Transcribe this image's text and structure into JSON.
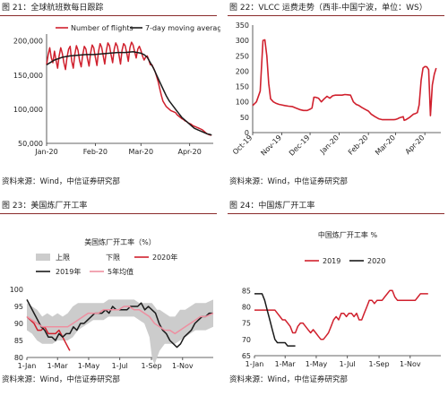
{
  "colors": {
    "red": "#d0202d",
    "black": "#1a1a1a",
    "pink": "#ee8fa0",
    "band": "#cccccc",
    "caption_rule": "#8a2b2b"
  },
  "panels": [
    {
      "caption": "图 21：全球航班数每日跟踪",
      "source": "资料来源：Wind，中信证券研究部"
    },
    {
      "caption": "图 22：VLCC 运费走势（西非-中国宁波，单位：WS）",
      "source": "资料来源：Wind，中信证券研究部"
    },
    {
      "caption": "图 23：美国炼厂开工率",
      "source": "资料来源：Wind，中信证券研究部"
    },
    {
      "caption": "图 24：中国炼厂开工率",
      "source": "资料来源：Wind，中信证券研究部"
    }
  ],
  "chart_data": [
    {
      "type": "line",
      "title": "",
      "x_ticks": [
        "Jan-20",
        "Feb-20",
        "Mar-20",
        "Apr-20"
      ],
      "x_range": [
        0,
        106
      ],
      "x_tick_positions": [
        0,
        31,
        60,
        91
      ],
      "ylim": [
        50000,
        210000
      ],
      "y_ticks": [
        "50,000",
        "100,000",
        "150,000",
        "200,000"
      ],
      "y_tick_values": [
        50000,
        100000,
        150000,
        200000
      ],
      "legend": "top",
      "series": [
        {
          "name": "Number of flights",
          "color": "#d0202d",
          "x": [
            0,
            1,
            2,
            3,
            4,
            5,
            6,
            7,
            8,
            9,
            10,
            11,
            12,
            13,
            14,
            15,
            16,
            17,
            18,
            19,
            20,
            21,
            22,
            23,
            24,
            25,
            26,
            27,
            28,
            29,
            30,
            31,
            32,
            33,
            34,
            35,
            36,
            37,
            38,
            39,
            40,
            41,
            42,
            43,
            44,
            45,
            46,
            47,
            48,
            49,
            50,
            51,
            52,
            53,
            54,
            55,
            56,
            57,
            58,
            59,
            60,
            61,
            62,
            63,
            64,
            65,
            66,
            67,
            68,
            69,
            70,
            71,
            72,
            73,
            74,
            75,
            76,
            77,
            78,
            79,
            80,
            81,
            82,
            83,
            84,
            85,
            86,
            87,
            88,
            89,
            90,
            91,
            92,
            93,
            94,
            95,
            96,
            97,
            98,
            99,
            100,
            101,
            102,
            103,
            104,
            105
          ],
          "y": [
            165000,
            180000,
            190000,
            175000,
            168000,
            185000,
            172000,
            160000,
            178000,
            190000,
            182000,
            168000,
            158000,
            176000,
            188000,
            192000,
            170000,
            160000,
            181000,
            193000,
            186000,
            171000,
            162000,
            180000,
            192000,
            188000,
            174000,
            163000,
            182000,
            194000,
            190000,
            176000,
            164000,
            184000,
            196000,
            191000,
            178000,
            166000,
            186000,
            197000,
            193000,
            180000,
            168000,
            188000,
            197000,
            192000,
            180000,
            166000,
            186000,
            196000,
            193000,
            182000,
            170000,
            190000,
            198000,
            194000,
            184000,
            175000,
            188000,
            192000,
            186000,
            178000,
            172000,
            176000,
            178000,
            172000,
            165000,
            165000,
            160000,
            155000,
            148000,
            140000,
            130000,
            120000,
            112000,
            108000,
            104000,
            102000,
            100000,
            98000,
            97000,
            96000,
            95000,
            92000,
            90000,
            88000,
            86000,
            85000,
            83000,
            82000,
            80000,
            79000,
            78000,
            76000,
            75000,
            74000,
            73000,
            72000,
            71000,
            70000,
            68000,
            66000,
            64000,
            63000,
            62000,
            62000
          ]
        },
        {
          "name": "7-day moving average",
          "color": "#1a1a1a",
          "x": [
            0,
            5,
            10,
            15,
            20,
            25,
            30,
            35,
            40,
            45,
            50,
            55,
            60,
            62,
            64,
            66,
            68,
            70,
            72,
            74,
            76,
            78,
            80,
            82,
            84,
            86,
            88,
            90,
            92,
            94,
            96,
            98,
            100,
            102,
            104,
            105
          ],
          "y": [
            165000,
            172000,
            176000,
            178000,
            179000,
            180000,
            180000,
            181000,
            182000,
            183000,
            183000,
            184000,
            182000,
            180000,
            176000,
            168000,
            160000,
            150000,
            140000,
            130000,
            120000,
            112000,
            106000,
            100000,
            94000,
            88000,
            84000,
            80000,
            76000,
            72000,
            70000,
            68000,
            66000,
            64000,
            63000,
            62000
          ]
        }
      ]
    },
    {
      "type": "line",
      "title": "",
      "x_ticks": [
        "Oct-19",
        "Nov-19",
        "Dec-19",
        "Jan-20",
        "Feb-20",
        "Mar-20",
        "Apr-20"
      ],
      "x_range": [
        0,
        200
      ],
      "x_tick_positions": [
        0,
        31,
        61,
        92,
        123,
        152,
        183
      ],
      "ylim": [
        0,
        350
      ],
      "y_ticks": [
        "0",
        "50",
        "100",
        "150",
        "200",
        "250",
        "300",
        "350"
      ],
      "y_tick_values": [
        0,
        50,
        100,
        150,
        200,
        250,
        300,
        350
      ],
      "series": [
        {
          "name": "",
          "color": "#d0202d",
          "x": [
            0,
            4,
            8,
            11,
            13,
            15,
            17,
            19,
            22,
            25,
            28,
            31,
            34,
            38,
            42,
            46,
            50,
            54,
            58,
            61,
            63,
            65,
            67,
            70,
            73,
            76,
            79,
            82,
            85,
            88,
            92,
            95,
            98,
            101,
            104,
            107,
            110,
            113,
            116,
            120,
            123,
            126,
            130,
            134,
            138,
            142,
            146,
            150,
            152,
            154,
            156,
            158,
            160,
            161,
            163,
            165,
            167,
            169,
            171,
            173,
            175,
            177,
            179,
            181,
            183,
            185,
            187,
            189,
            191,
            193,
            195
          ],
          "y": [
            88,
            100,
            135,
            300,
            302,
            250,
            160,
            110,
            100,
            95,
            92,
            90,
            88,
            86,
            85,
            80,
            75,
            72,
            72,
            76,
            80,
            115,
            115,
            112,
            100,
            110,
            118,
            112,
            120,
            122,
            122,
            122,
            124,
            123,
            122,
            100,
            92,
            88,
            82,
            75,
            70,
            60,
            52,
            45,
            42,
            42,
            42,
            42,
            43,
            45,
            48,
            50,
            52,
            40,
            42,
            46,
            50,
            55,
            60,
            62,
            65,
            90,
            170,
            210,
            215,
            214,
            205,
            55,
            155,
            190,
            210
          ]
        }
      ]
    },
    {
      "type": "line",
      "title": "美国炼厂开工率（%）",
      "x_ticks": [
        "1-Jan",
        "1-Mar",
        "1-May",
        "1-Jul",
        "1-Sep",
        "1-Nov"
      ],
      "x_range": [
        0,
        365
      ],
      "x_tick_positions": [
        0,
        60,
        121,
        182,
        244,
        305
      ],
      "ylim": [
        80,
        100
      ],
      "y_ticks": [
        "80",
        "85",
        "90",
        "95",
        "100"
      ],
      "y_tick_values": [
        80,
        85,
        90,
        95,
        100
      ],
      "legend": "top",
      "band": {
        "name": "上限",
        "lower_name": "下限",
        "x": [
          0,
          10,
          20,
          30,
          40,
          50,
          60,
          70,
          80,
          90,
          100,
          110,
          120,
          130,
          140,
          150,
          160,
          170,
          180,
          190,
          200,
          210,
          220,
          230,
          240,
          245,
          250,
          255,
          260,
          270,
          280,
          290,
          300,
          310,
          320,
          330,
          340,
          350,
          365
        ],
        "upper": [
          96,
          95,
          94,
          92,
          93,
          92,
          93,
          92,
          93,
          95,
          96,
          96,
          96,
          96,
          96,
          96,
          97,
          97,
          97,
          97,
          97,
          97,
          96,
          96,
          96,
          96,
          95,
          94,
          94,
          93,
          92,
          92,
          94,
          94,
          95,
          96,
          96,
          96,
          97
        ],
        "lower": [
          88,
          87,
          85,
          84,
          84,
          84,
          85,
          85,
          85,
          86,
          88,
          89,
          90,
          91,
          91,
          91,
          92,
          92,
          92,
          92,
          92,
          92,
          91,
          90,
          86,
          80,
          78,
          80,
          82,
          84,
          84,
          84,
          85,
          86,
          87,
          88,
          88,
          88,
          89
        ]
      },
      "series": [
        {
          "name": "2020年",
          "color": "#d0202d",
          "x": [
            0,
            7,
            14,
            21,
            28,
            35,
            42,
            49,
            56,
            63,
            70,
            77,
            84
          ],
          "y": [
            92,
            91,
            90,
            88,
            88,
            89,
            87,
            87,
            87,
            88,
            86,
            84,
            82
          ]
        },
        {
          "name": "2019年",
          "color": "#1a1a1a",
          "x": [
            0,
            7,
            14,
            21,
            28,
            35,
            42,
            49,
            56,
            63,
            70,
            77,
            84,
            91,
            98,
            105,
            112,
            119,
            126,
            133,
            140,
            147,
            154,
            161,
            168,
            175,
            182,
            189,
            196,
            203,
            210,
            217,
            224,
            231,
            238,
            245,
            252,
            259,
            266,
            273,
            280,
            287,
            294,
            301,
            308,
            315,
            322,
            329,
            336,
            343,
            350,
            357,
            364
          ],
          "y": [
            97,
            95,
            93,
            91,
            89,
            88,
            86,
            86,
            85,
            87,
            86,
            87,
            87,
            89,
            88,
            90,
            90,
            91,
            92,
            93,
            93,
            93,
            94,
            93,
            95,
            94,
            94,
            94,
            94,
            95,
            95,
            95,
            96,
            94,
            95,
            94,
            93,
            90,
            88,
            87,
            85,
            84,
            83,
            84,
            86,
            87,
            88,
            90,
            91,
            92,
            92,
            93,
            93
          ]
        },
        {
          "name": "5年均值",
          "color": "#ee8fa0",
          "x": [
            0,
            10,
            20,
            30,
            40,
            50,
            60,
            70,
            80,
            90,
            100,
            110,
            120,
            130,
            140,
            150,
            160,
            170,
            180,
            190,
            200,
            210,
            220,
            230,
            240,
            250,
            260,
            270,
            280,
            290,
            300,
            310,
            320,
            330,
            340,
            350,
            365
          ],
          "y": [
            92,
            91,
            90,
            89,
            89,
            89,
            89,
            89,
            89,
            90,
            91,
            92,
            93,
            93,
            93,
            94,
            94,
            94,
            94,
            95,
            95,
            94,
            94,
            93,
            92,
            90,
            89,
            88,
            88,
            87,
            88,
            89,
            90,
            91,
            92,
            92,
            93
          ]
        }
      ]
    },
    {
      "type": "line",
      "title": "中国炼厂开工率 %",
      "x_ticks": [
        "1-Jan",
        "1-Mar",
        "1-May",
        "1-Jul",
        "1-Sep",
        "1-Nov"
      ],
      "x_range": [
        0,
        365
      ],
      "x_tick_positions": [
        0,
        60,
        121,
        182,
        244,
        305
      ],
      "ylim": [
        65,
        87
      ],
      "y_ticks": [
        "65",
        "70",
        "75",
        "80",
        "85"
      ],
      "y_tick_values": [
        65,
        70,
        75,
        80,
        85
      ],
      "legend": "top",
      "series": [
        {
          "name": "2019",
          "color": "#d0202d",
          "x": [
            0,
            10,
            20,
            30,
            40,
            45,
            50,
            55,
            60,
            65,
            70,
            75,
            80,
            85,
            90,
            95,
            100,
            105,
            110,
            115,
            120,
            125,
            130,
            135,
            140,
            145,
            150,
            155,
            160,
            165,
            170,
            175,
            180,
            185,
            190,
            195,
            200,
            205,
            210,
            215,
            220,
            225,
            230,
            235,
            240,
            245,
            250,
            255,
            260,
            265,
            270,
            275,
            280,
            285,
            290,
            295,
            300,
            305,
            310,
            315,
            320,
            325,
            330,
            335,
            340
          ],
          "y": [
            79,
            79,
            79,
            79,
            79,
            78,
            77,
            76,
            76,
            75,
            74,
            72,
            72,
            74,
            75,
            75,
            74,
            73,
            72,
            73,
            72,
            71,
            70,
            70,
            71,
            72,
            74,
            76,
            77,
            76,
            78,
            78,
            77,
            78,
            78,
            77,
            78,
            76,
            76,
            78,
            80,
            82,
            82,
            81,
            82,
            82,
            82,
            83,
            84,
            85,
            85,
            83,
            82,
            82,
            82,
            82,
            82,
            82,
            82,
            82,
            83,
            84,
            84,
            84,
            84
          ]
        },
        {
          "name": "2020",
          "color": "#1a1a1a",
          "x": [
            0,
            5,
            10,
            15,
            20,
            25,
            30,
            35,
            40,
            45,
            50,
            55,
            60,
            65,
            70,
            75,
            80
          ],
          "y": [
            84,
            84,
            84,
            84,
            82,
            79,
            76,
            73,
            70,
            69,
            69,
            69,
            69,
            68,
            68,
            68,
            68
          ]
        }
      ]
    }
  ]
}
